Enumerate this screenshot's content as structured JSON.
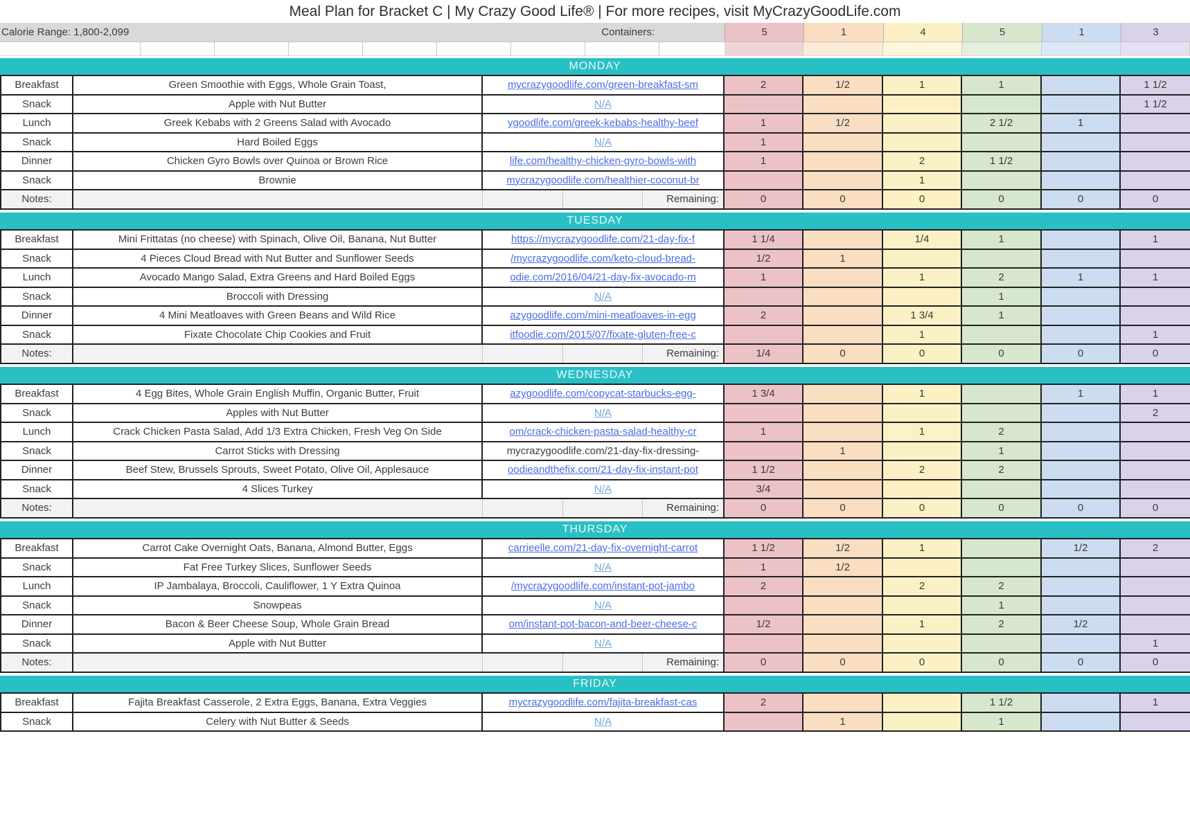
{
  "title": "Meal Plan for Bracket C | My Crazy Good Life® | For more recipes, visit MyCrazyGoodLife.com",
  "header": {
    "calorie_range": "Calorie Range: 1,800-2,099",
    "containers_label": "Containers:",
    "container_counts": [
      "5",
      "1",
      "4",
      "5",
      "1",
      "3"
    ]
  },
  "columns": [
    {
      "name": "red",
      "hex": "#ebc3c7",
      "light": "#f2d4d7"
    },
    {
      "name": "orange",
      "hex": "#fadec2",
      "light": "#fcebd8"
    },
    {
      "name": "yellow",
      "hex": "#fcf1c5",
      "light": "#fdf6da"
    },
    {
      "name": "green",
      "hex": "#d7e7cd",
      "light": "#e4efdd"
    },
    {
      "name": "blue",
      "hex": "#cdddf1",
      "light": "#dde8f6"
    },
    {
      "name": "purple",
      "hex": "#d9d2e9",
      "light": "#e5e0f1"
    }
  ],
  "accent_teal": "#29c0c5",
  "notes_label": "Notes:",
  "remaining_label": "Remaining:",
  "days": [
    {
      "name": "MONDAY",
      "rows": [
        {
          "label": "Breakfast",
          "desc": "Green Smoothie with Eggs, Whole Grain Toast,",
          "link": "mycrazygoodlife.com/green-breakfast-sm",
          "link_style": "link",
          "cells": [
            "2",
            "1/2",
            "1",
            "1",
            "",
            "1 1/2"
          ]
        },
        {
          "label": "Snack",
          "desc": "Apple with Nut Butter",
          "link": "N/A",
          "link_style": "na",
          "cells": [
            "",
            "",
            "",
            "",
            "",
            "1 1/2"
          ]
        },
        {
          "label": "Lunch",
          "desc": "Greek Kebabs with 2 Greens Salad with Avocado",
          "link": "ygoodlife.com/greek-kebabs-healthy-beef",
          "link_style": "link",
          "cells": [
            "1",
            "1/2",
            "",
            "2 1/2",
            "1",
            ""
          ]
        },
        {
          "label": "Snack",
          "desc": "Hard Boiled Eggs",
          "link": "N/A",
          "link_style": "na",
          "cells": [
            "1",
            "",
            "",
            "",
            "",
            ""
          ]
        },
        {
          "label": "Dinner",
          "desc": "Chicken Gyro Bowls over Quinoa or Brown Rice",
          "link": "life.com/healthy-chicken-gyro-bowls-with",
          "link_style": "link",
          "cells": [
            "1",
            "",
            "2",
            "1 1/2",
            "",
            ""
          ]
        },
        {
          "label": "Snack",
          "desc": "Brownie",
          "link": "mycrazygoodlife.com/healthier-coconut-br",
          "link_style": "link",
          "cells": [
            "",
            "",
            "1",
            "",
            "",
            ""
          ]
        }
      ],
      "remaining": [
        "0",
        "0",
        "0",
        "0",
        "0",
        "0"
      ]
    },
    {
      "name": "TUESDAY",
      "rows": [
        {
          "label": "Breakfast",
          "desc": "Mini Frittatas (no cheese) with Spinach, Olive Oil, Banana, Nut Butter",
          "link": "https://mycrazygoodlife.com/21-day-fix-f",
          "link_style": "link",
          "cells": [
            "1 1/4",
            "",
            "1/4",
            "1",
            "",
            "1"
          ]
        },
        {
          "label": "Snack",
          "desc": "4 Pieces Cloud Bread with Nut Butter and Sunflower Seeds",
          "link": "/mycrazygoodlife.com/keto-cloud-bread-",
          "link_style": "link",
          "cells": [
            "1/2",
            "1",
            "",
            "",
            "",
            ""
          ]
        },
        {
          "label": "Lunch",
          "desc": "Avocado Mango Salad, Extra Greens and Hard Boiled Eggs",
          "link": "odie.com/2016/04/21-day-fix-avocado-m",
          "link_style": "link",
          "cells": [
            "1",
            "",
            "1",
            "2",
            "1",
            "1"
          ]
        },
        {
          "label": "Snack",
          "desc": "Broccoli with Dressing",
          "link": "N/A",
          "link_style": "na",
          "cells": [
            "",
            "",
            "",
            "1",
            "",
            ""
          ]
        },
        {
          "label": "Dinner",
          "desc": "4 Mini Meatloaves with Green Beans and Wild Rice",
          "link": "azygoodlife.com/mini-meatloaves-in-egg",
          "link_style": "link",
          "cells": [
            "2",
            "",
            "1 3/4",
            "1",
            "",
            ""
          ]
        },
        {
          "label": "Snack",
          "desc": "Fixate Chocolate Chip Cookies and Fruit",
          "link": "itfoodie.com/2015/07/fixate-gluten-free-c",
          "link_style": "link",
          "cells": [
            "",
            "",
            "1",
            "",
            "",
            "1"
          ]
        }
      ],
      "remaining": [
        "1/4",
        "0",
        "0",
        "0",
        "0",
        "0"
      ]
    },
    {
      "name": "WEDNESDAY",
      "rows": [
        {
          "label": "Breakfast",
          "desc": "4 Egg Bites, Whole Grain English Muffin, Organic Butter, Fruit",
          "link": "azygoodlife.com/copycat-starbucks-egg-",
          "link_style": "link",
          "cells": [
            "1 3/4",
            "",
            "1",
            "",
            "1",
            "1"
          ]
        },
        {
          "label": "Snack",
          "desc": "Apples with Nut Butter",
          "link": "N/A",
          "link_style": "na",
          "cells": [
            "",
            "",
            "",
            "",
            "",
            "2"
          ]
        },
        {
          "label": "Lunch",
          "desc": "Crack Chicken Pasta Salad, Add 1/3 Extra Chicken, Fresh Veg On Side",
          "link": "om/crack-chicken-pasta-salad-healthy-cr",
          "link_style": "link",
          "cells": [
            "1",
            "",
            "1",
            "2",
            "",
            ""
          ]
        },
        {
          "label": "Snack",
          "desc": "Carrot Sticks with Dressing",
          "link": "mycrazygoodlife.com/21-day-fix-dressing-",
          "link_style": "plain",
          "cells": [
            "",
            "1",
            "",
            "1",
            "",
            ""
          ]
        },
        {
          "label": "Dinner",
          "desc": "Beef Stew, Brussels Sprouts, Sweet Potato, Olive Oil, Applesauce",
          "link": "oodieandthefix.com/21-day-fix-instant-pot",
          "link_style": "link",
          "cells": [
            "1 1/2",
            "",
            "2",
            "2",
            "",
            ""
          ]
        },
        {
          "label": "Snack",
          "desc": "4 Slices Turkey",
          "link": "N/A",
          "link_style": "na",
          "cells": [
            "3/4",
            "",
            "",
            "",
            "",
            ""
          ]
        }
      ],
      "remaining": [
        "0",
        "0",
        "0",
        "0",
        "0",
        "0"
      ]
    },
    {
      "name": "THURSDAY",
      "rows": [
        {
          "label": "Breakfast",
          "desc": "Carrot Cake Overnight Oats, Banana, Almond Butter, Eggs",
          "link": "carrieelle.com/21-day-fix-overnight-carrot",
          "link_style": "link",
          "cells": [
            "1 1/2",
            "1/2",
            "1",
            "",
            "1/2",
            "2"
          ]
        },
        {
          "label": "Snack",
          "desc": "Fat Free Turkey Slices, Sunflower Seeds",
          "link": "N/A",
          "link_style": "na",
          "cells": [
            "1",
            "1/2",
            "",
            "",
            "",
            ""
          ]
        },
        {
          "label": "Lunch",
          "desc": "IP Jambalaya, Broccoli, Cauliflower, 1 Y Extra Quinoa",
          "link": "/mycrazygoodlife.com/instant-pot-jambo",
          "link_style": "link",
          "cells": [
            "2",
            "",
            "2",
            "2",
            "",
            ""
          ]
        },
        {
          "label": "Snack",
          "desc": "Snowpeas",
          "link": "N/A",
          "link_style": "na",
          "cells": [
            "",
            "",
            "",
            "1",
            "",
            ""
          ]
        },
        {
          "label": "Dinner",
          "desc": "Bacon & Beer Cheese Soup, Whole Grain Bread",
          "link": "om/instant-pot-bacon-and-beer-cheese-c",
          "link_style": "link",
          "cells": [
            "1/2",
            "",
            "1",
            "2",
            "1/2",
            ""
          ]
        },
        {
          "label": "Snack",
          "desc": "Apple with Nut Butter",
          "link": "N/A",
          "link_style": "na",
          "cells": [
            "",
            "",
            "",
            "",
            "",
            "1"
          ]
        }
      ],
      "remaining": [
        "0",
        "0",
        "0",
        "0",
        "0",
        "0"
      ]
    },
    {
      "name": "FRIDAY",
      "rows": [
        {
          "label": "Breakfast",
          "desc": "Fajita Breakfast Casserole, 2 Extra Eggs, Banana, Extra Veggies",
          "link": "mycrazygoodlife.com/fajita-breakfast-cas",
          "link_style": "link",
          "cells": [
            "2",
            "",
            "",
            "1 1/2",
            "",
            "1"
          ]
        },
        {
          "label": "Snack",
          "desc": "Celery with Nut Butter & Seeds",
          "link": "N/A",
          "link_style": "na",
          "cells": [
            "",
            "1",
            "",
            "1",
            "",
            ""
          ]
        }
      ],
      "remaining": null
    }
  ]
}
